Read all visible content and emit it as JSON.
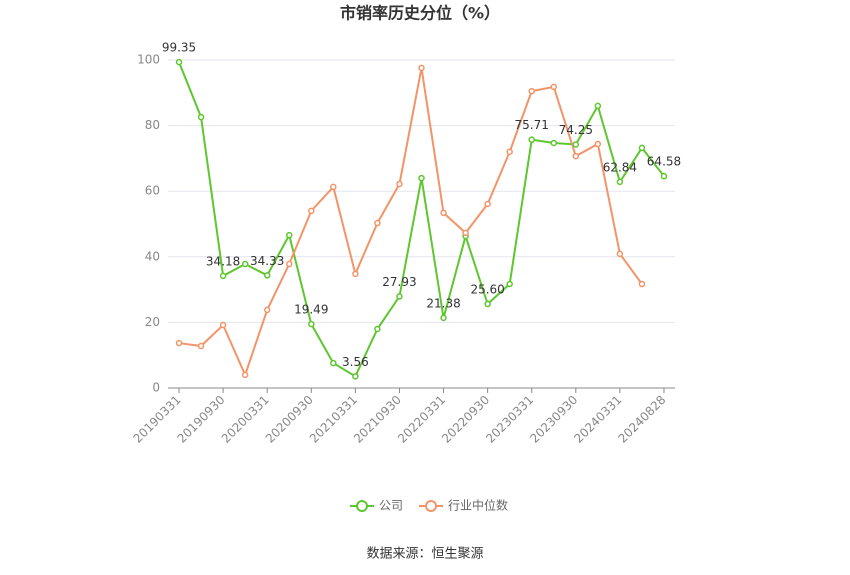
{
  "chart_data": {
    "type": "line",
    "title": "市销率历史分位（%）",
    "categories": [
      "20190331",
      null,
      "20190930",
      null,
      "20200331",
      null,
      "20200930",
      null,
      "20210331",
      null,
      "20210930",
      null,
      "20220331",
      null,
      "20220930",
      null,
      "20230331",
      null,
      "20230930",
      null,
      "20240331",
      null,
      "20240828"
    ],
    "series": [
      {
        "name": "公司",
        "color": "#5ec62e",
        "values": [
          99.35,
          82.6,
          34.18,
          37.8,
          34.33,
          46.6,
          19.49,
          7.6,
          3.56,
          18.0,
          27.93,
          64.0,
          21.38,
          46.3,
          25.6,
          31.7,
          75.71,
          74.7,
          74.25,
          86.0,
          62.84,
          73.2,
          64.58
        ],
        "value_labels": [
          "99.35",
          null,
          "34.18",
          null,
          "34.33",
          null,
          "19.49",
          null,
          "3.56",
          null,
          "27.93",
          null,
          "21.38",
          null,
          "25.60",
          null,
          "75.71",
          null,
          "74.25",
          null,
          "62.84",
          null,
          "64.58"
        ]
      },
      {
        "name": "行业中位数",
        "color": "#f39468",
        "values": [
          13.7,
          12.8,
          19.2,
          4.0,
          23.8,
          37.8,
          54.0,
          61.3,
          34.8,
          50.3,
          62.2,
          97.6,
          53.4,
          47.3,
          56.1,
          72.0,
          90.5,
          91.8,
          70.7,
          74.4,
          40.9,
          31.7,
          null
        ]
      }
    ],
    "ylim": [
      0,
      100
    ],
    "yticks": [
      0,
      20,
      40,
      60,
      80,
      100
    ],
    "grid": true,
    "source": "数据来源：恒生聚源"
  }
}
